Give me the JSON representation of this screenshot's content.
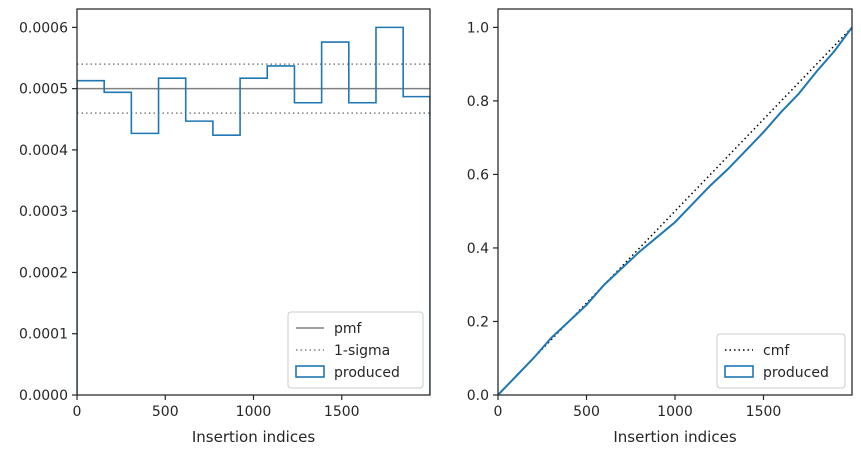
{
  "chart_data": [
    {
      "type": "histogram",
      "xlabel": "Insertion indices",
      "ylabel": "",
      "xlim": [
        0,
        2000
      ],
      "ylim": [
        0,
        0.00063
      ],
      "xticks": [
        0,
        500,
        1000,
        1500
      ],
      "yticks": [
        0.0,
        0.0001,
        0.0002,
        0.0003,
        0.0004,
        0.0005,
        0.0006
      ],
      "ytick_labels": [
        "0.0000",
        "0.0001",
        "0.0002",
        "0.0003",
        "0.0004",
        "0.0005",
        "0.0006"
      ],
      "bin_edges": [
        0,
        154,
        308,
        462,
        616,
        770,
        924,
        1078,
        1232,
        1386,
        1540,
        1694,
        1848,
        2000
      ],
      "series": [
        {
          "name": "produced",
          "values": [
            0.000513,
            0.000494,
            0.000427,
            0.000517,
            0.000447,
            0.000424,
            0.000517,
            0.000537,
            0.000477,
            0.000576,
            0.000477,
            0.0006,
            0.000487
          ],
          "color": "#1f77b4"
        }
      ],
      "reference_lines": [
        {
          "name": "pmf",
          "y": 0.0005,
          "style": "solid",
          "color": "#808080"
        },
        {
          "name": "1-sigma",
          "y": [
            0.00046,
            0.00054
          ],
          "style": "dotted",
          "color": "#808080"
        }
      ],
      "legend": {
        "position": "lower-right",
        "entries": [
          "pmf",
          "1-sigma",
          "produced"
        ]
      }
    },
    {
      "type": "line",
      "xlabel": "Insertion indices",
      "ylabel": "",
      "xlim": [
        0,
        2000
      ],
      "ylim": [
        0,
        1.05
      ],
      "xticks": [
        0,
        500,
        1000,
        1500
      ],
      "yticks": [
        0.0,
        0.2,
        0.4,
        0.6,
        0.8,
        1.0
      ],
      "ytick_labels": [
        "0.0",
        "0.2",
        "0.4",
        "0.6",
        "0.8",
        "1.0"
      ],
      "series": [
        {
          "name": "cmf",
          "x": [
            0,
            2000
          ],
          "y": [
            0,
            1.0
          ],
          "style": "dotted",
          "color": "#000000"
        },
        {
          "name": "produced",
          "x": [
            0,
            100,
            200,
            300,
            400,
            500,
            600,
            700,
            800,
            900,
            1000,
            1100,
            1200,
            1300,
            1400,
            1500,
            1600,
            1700,
            1800,
            1900,
            2000
          ],
          "y": [
            0,
            0.05,
            0.1,
            0.155,
            0.2,
            0.245,
            0.3,
            0.345,
            0.39,
            0.43,
            0.47,
            0.52,
            0.57,
            0.615,
            0.665,
            0.715,
            0.77,
            0.82,
            0.88,
            0.935,
            1.0
          ],
          "style": "solid",
          "color": "#1f77b4"
        }
      ],
      "legend": {
        "position": "lower-right",
        "entries": [
          "cmf",
          "produced"
        ]
      }
    }
  ]
}
